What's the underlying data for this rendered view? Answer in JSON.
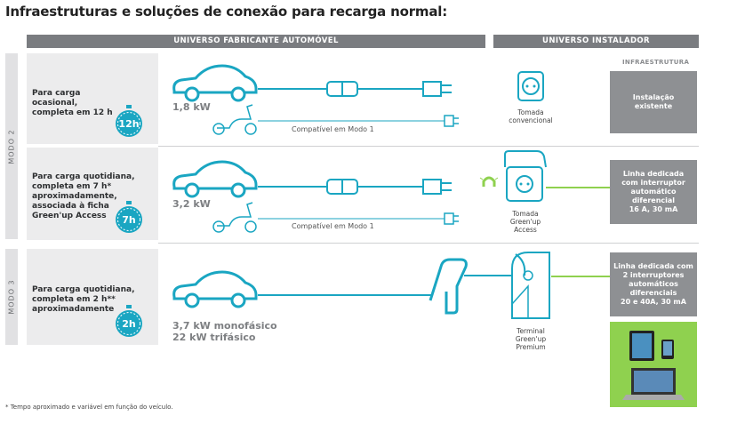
{
  "title": "Infraestruturas e soluções de conexão para recarga normal:",
  "headers": {
    "left": "UNIVERSO FABRICANTE AUTOMÓVEL",
    "right": "UNIVERSO INSTALADOR",
    "infra": "INFRAESTRUTURA"
  },
  "modes": {
    "mode2": "MODO 2",
    "mode3": "MODO 3"
  },
  "rows": [
    {
      "label": [
        "Para carga",
        "ocasional,",
        "completa em 12 h"
      ],
      "timer": "12h",
      "power": "1,8 kW",
      "compat": "Compatível em Modo 1",
      "outlet": [
        "Tomada",
        "convencional"
      ],
      "infra": [
        "Instalação",
        "existente"
      ]
    },
    {
      "label": [
        "Para carga quotidiana,",
        "completa em 7 h*",
        "aproximadamente,",
        "associada à ficha",
        "Green'up Access"
      ],
      "timer": "7h",
      "power": "3,2 kW",
      "compat": "Compatível em Modo 1",
      "outlet": [
        "Tomada",
        "Green'up",
        "Access"
      ],
      "infra": [
        "Linha dedicada",
        "com interruptor",
        "automático",
        "diferencial",
        "16 A, 30 mA"
      ]
    },
    {
      "label": [
        "Para carga quotidiana,",
        "completa em 2 h**",
        "aproximadamente"
      ],
      "timer": "2h",
      "power": [
        "3,7 kW monofásico",
        "22 kW trifásico"
      ],
      "outlet": [
        "Terminal",
        "Green'up",
        "Premium"
      ],
      "infra": [
        "Linha dedicada com",
        "2 interruptores",
        "automáticos",
        "diferenciais",
        "20 e 40A, 30 mA"
      ]
    }
  ],
  "footnote": "* Tempo aproximado e variável em função do veículo.",
  "colors": {
    "teal": "#1aa6c2",
    "green": "#8fd14f",
    "grey": "#8e9093",
    "header": "#7a7c80"
  }
}
